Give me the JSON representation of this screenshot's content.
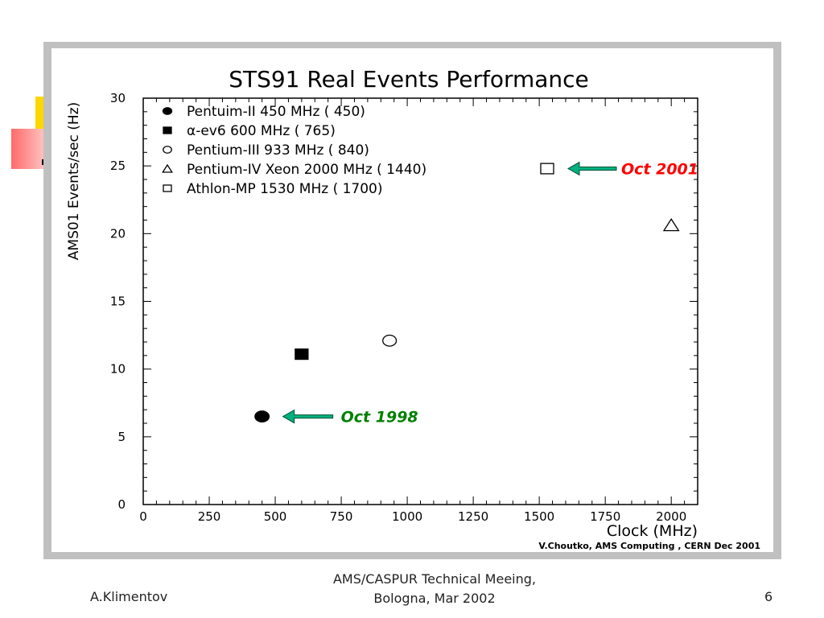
{
  "chart_data": {
    "type": "scatter",
    "title": "STS91 Real Events Performance",
    "xlabel": "Clock (MHz)",
    "ylabel": "AMS01 Events/sec (Hz)",
    "xlim": [
      0,
      2100
    ],
    "ylim": [
      0,
      30
    ],
    "xticks": [
      0,
      250,
      500,
      750,
      1000,
      1250,
      1500,
      1750,
      2000
    ],
    "yticks": [
      0,
      5,
      10,
      15,
      20,
      25,
      30
    ],
    "grid": false,
    "legend_position": "top-left",
    "series": [
      {
        "name": "Pentuim-II 450 MHz ( 450)",
        "marker": "filled-circle",
        "x": 450,
        "y": 6.5
      },
      {
        "name": "α-ev6 600 MHz  ( 765)",
        "marker": "filled-square",
        "x": 600,
        "y": 11.1
      },
      {
        "name": "Pentium-III 933 MHz ( 840)",
        "marker": "open-circle",
        "x": 933,
        "y": 12.1
      },
      {
        "name": "Pentium-IV Xeon 2000 MHz ( 1440)",
        "marker": "open-triangle",
        "x": 2000,
        "y": 20.6
      },
      {
        "name": "Athlon-MP 1530 MHz ( 1700)",
        "marker": "open-square",
        "x": 1530,
        "y": 24.8
      }
    ],
    "annotations": [
      {
        "text": "Oct 1998",
        "target_series": 0,
        "color": "#008000"
      },
      {
        "text": "Oct 2001",
        "target_series": 4,
        "color": "#ff0000"
      }
    ],
    "credit": "V.Choutko, AMS Computing , CERN Dec 2001"
  },
  "footer": {
    "author": "A.Klimentov",
    "event_line1": "AMS/CASPUR Technical Meeing,",
    "event_line2": "Bologna, Mar 2002",
    "page_number": "6"
  },
  "colors": {
    "arrow_fill": "#00b080",
    "arrow_stroke": "#005030",
    "frame": "#c0c0c0"
  }
}
